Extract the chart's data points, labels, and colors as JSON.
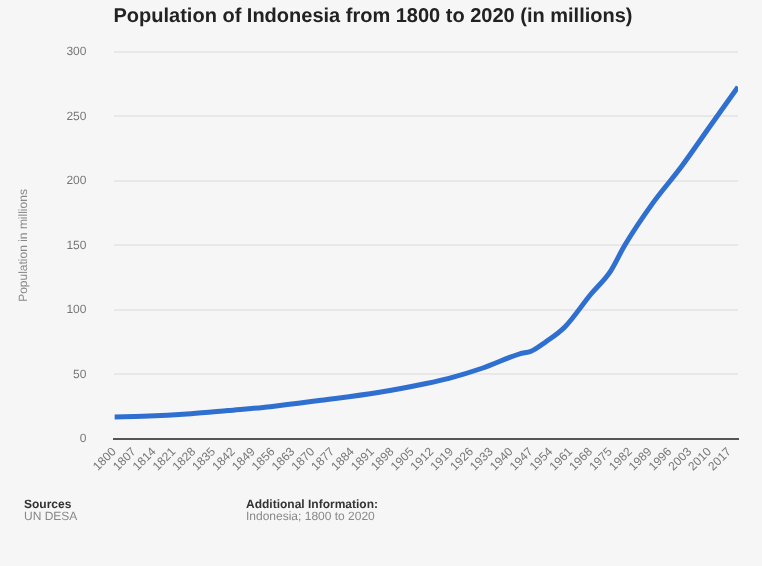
{
  "chart_data": {
    "type": "line",
    "title": "Population of Indonesia from 1800 to 2020 (in millions)",
    "ylabel": "Population in millions",
    "x": [
      1800,
      1810,
      1827,
      1840,
      1855,
      1873,
      1893,
      1910,
      1918,
      1930,
      1943,
      1947,
      1952,
      1959,
      1968,
      1975,
      1980,
      1990,
      2000,
      2010,
      2020
    ],
    "series": [
      {
        "color": "#2f6fcf",
        "values": [
          17,
          17.5,
          19.5,
          22,
          25,
          30,
          36,
          43,
          47,
          55,
          66,
          68,
          75,
          87,
          112,
          130,
          150,
          183,
          211,
          242,
          273
        ]
      }
    ],
    "xlim": [
      1800,
      2020
    ],
    "xticks": [
      1800,
      1807,
      1814,
      1821,
      1828,
      1835,
      1842,
      1849,
      1856,
      1863,
      1870,
      1877,
      1884,
      1891,
      1898,
      1905,
      1912,
      1919,
      1926,
      1933,
      1940,
      1947,
      1954,
      1961,
      1968,
      1975,
      1982,
      1989,
      1996,
      2003,
      2010,
      2017
    ],
    "ylim": [
      0,
      300
    ],
    "yticks": [
      0,
      50,
      100,
      150,
      200,
      250,
      300
    ],
    "grid": "y",
    "marker": "none",
    "line_style": "solid",
    "annotations": [
      "Sources",
      "UN DESA",
      "Additional Information:",
      "Indonesia; 1800 to 2020"
    ]
  }
}
